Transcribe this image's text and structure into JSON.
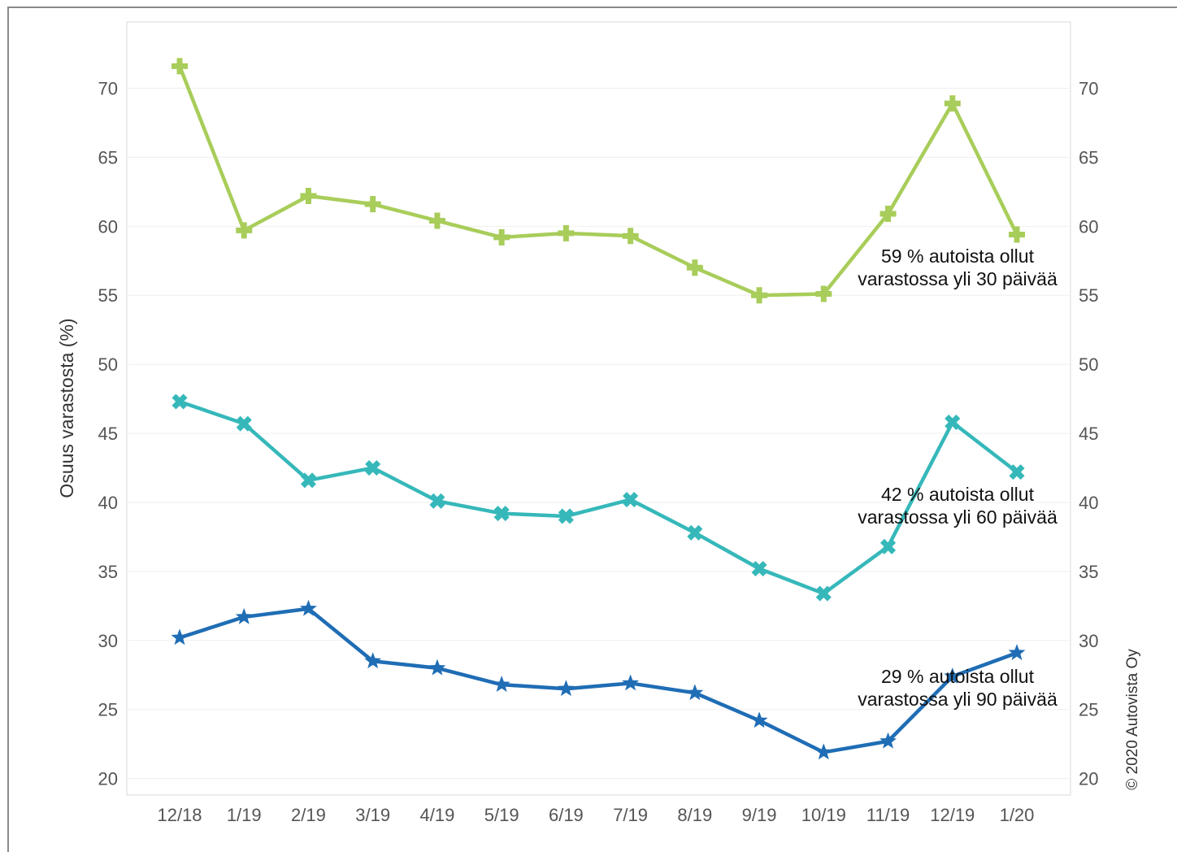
{
  "chart_data": {
    "type": "line",
    "x": [
      "12/18",
      "1/19",
      "2/19",
      "3/19",
      "4/19",
      "5/19",
      "6/19",
      "7/19",
      "8/19",
      "9/19",
      "10/19",
      "11/19",
      "12/19",
      "1/20"
    ],
    "series": [
      {
        "marker": "plus",
        "color": "#a8cd5a",
        "values": [
          71.6,
          59.7,
          62.2,
          61.6,
          60.4,
          59.2,
          59.5,
          59.3,
          57.0,
          55.0,
          55.1,
          60.9,
          68.9,
          59.4
        ]
      },
      {
        "marker": "cross",
        "color": "#36b8ba",
        "values": [
          47.3,
          45.7,
          41.6,
          42.5,
          40.1,
          39.2,
          39.0,
          40.2,
          37.8,
          35.2,
          33.4,
          36.8,
          45.8,
          42.2
        ]
      },
      {
        "marker": "star",
        "color": "#1f6db5",
        "values": [
          30.2,
          31.7,
          32.3,
          28.5,
          28.0,
          26.8,
          26.5,
          26.9,
          26.2,
          24.2,
          21.9,
          22.7,
          27.4,
          29.1
        ]
      }
    ],
    "ylabel": "Osuus varastosta (%)",
    "ylim": [
      18.8,
      74.8
    ],
    "yticks": [
      20,
      25,
      30,
      35,
      40,
      45,
      50,
      55,
      60,
      65,
      70
    ],
    "secondary_y_axis": true,
    "grid": true,
    "annotations": [
      {
        "lines": [
          "59 % autoista ollut",
          "varastossa yli 30 päivää"
        ]
      },
      {
        "lines": [
          "42 % autoista ollut",
          "varastossa yli 60 päivää"
        ]
      },
      {
        "lines": [
          "29 % autoista ollut",
          "varastossa yli 90 päivää"
        ]
      }
    ]
  },
  "copyright": "© 2020 Autovista Oy"
}
